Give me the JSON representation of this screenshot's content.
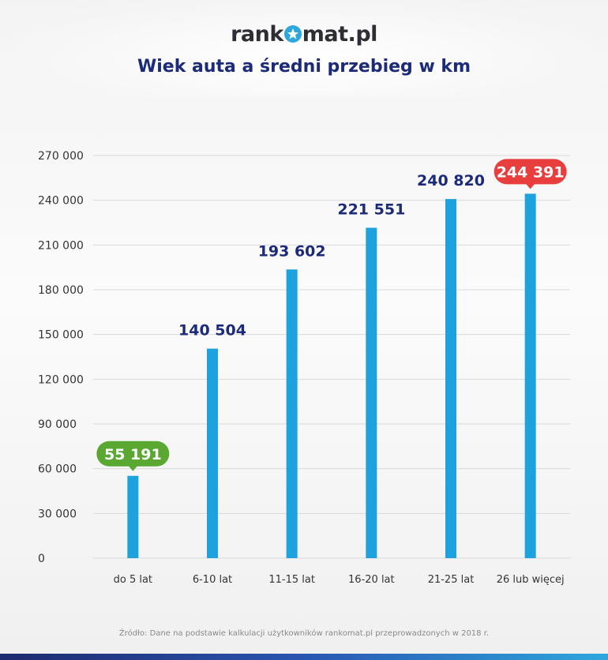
{
  "logo": {
    "text_left": "rank",
    "text_right": "mat.pl"
  },
  "title": "Wiek auta a średni przebieg w km",
  "source": "Źródło: Dane na podstawie kalkulacji użytkowników rankomat.pl przeprowadzonych w 2018 r.",
  "colors": {
    "bar": "#1ea2de",
    "value_label": "#1c2a7a",
    "min_badge": "#5aa832",
    "max_badge": "#e83e3e",
    "grid": "#d9d9d9",
    "axis_text": "#333333"
  },
  "chart_data": {
    "type": "bar",
    "title": "Wiek auta a średni przebieg w km",
    "categories": [
      "do 5 lat",
      "6-10 lat",
      "11-15 lat",
      "16-20 lat",
      "21-25 lat",
      "26 lub więcej"
    ],
    "values": [
      55191,
      140504,
      193602,
      221551,
      240820,
      244391
    ],
    "value_labels": [
      "55 191",
      "140 504",
      "193 602",
      "221 551",
      "240 820",
      "244 391"
    ],
    "ylim": [
      0,
      270000
    ],
    "yticks": [
      0,
      30000,
      60000,
      90000,
      120000,
      150000,
      180000,
      210000,
      240000,
      270000
    ],
    "ytick_labels": [
      "0",
      "30 000",
      "60 000",
      "90 000",
      "120 000",
      "150 000",
      "180 000",
      "210 000",
      "240 000",
      "270 000"
    ],
    "highlight": {
      "min_index": 0,
      "max_index": 5
    },
    "grid": true,
    "xlabel": "",
    "ylabel": ""
  }
}
